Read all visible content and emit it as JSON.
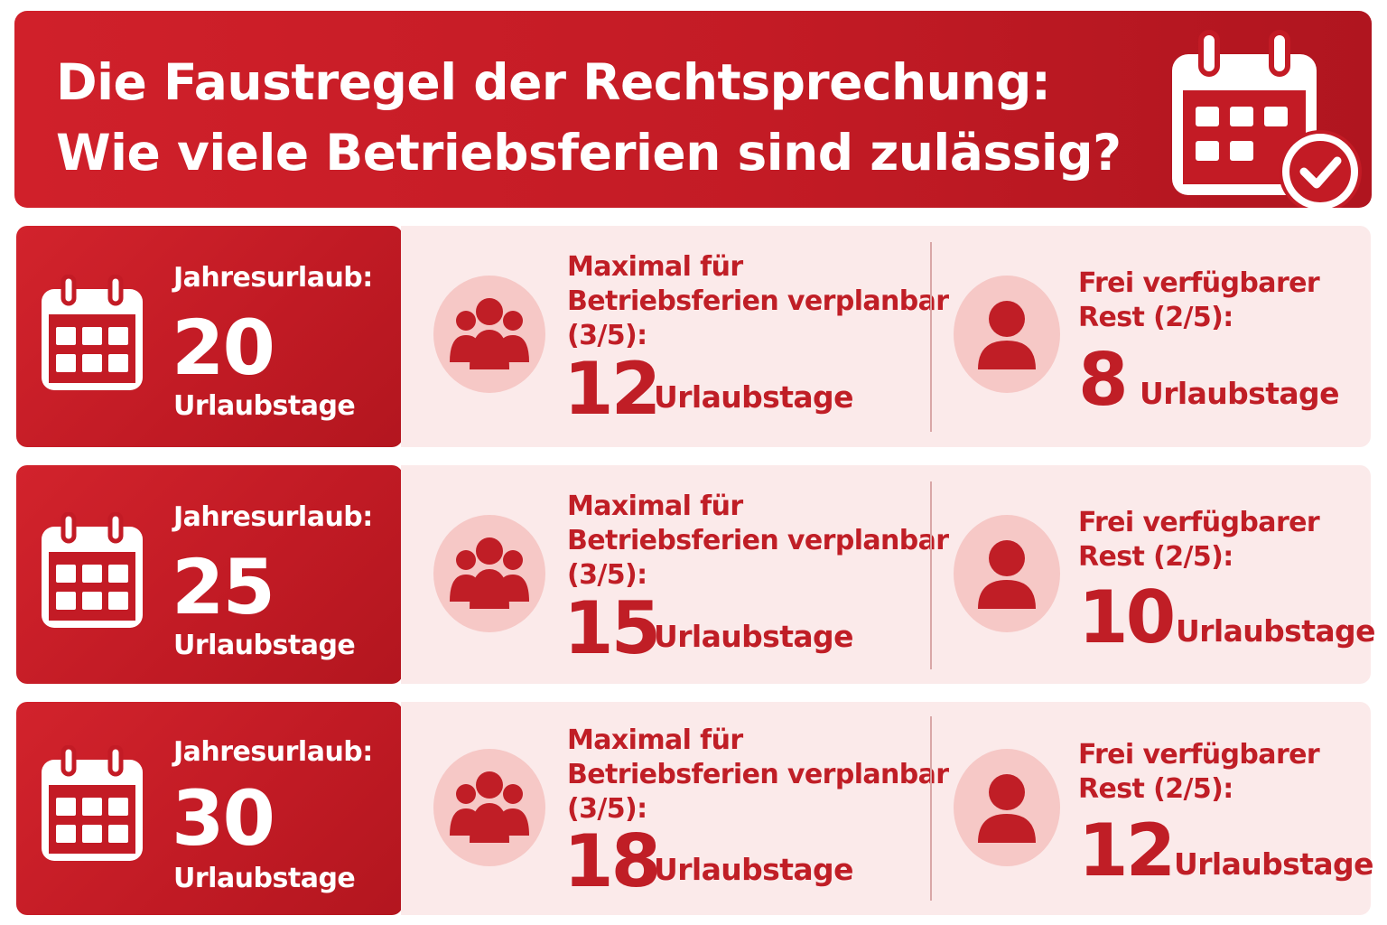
{
  "header": {
    "title_line1": "Die Faustregel der Rechtsprechung:",
    "title_line2": "Wie viele Betriebsferien sind zulässig?",
    "icon": "calendar-check-icon"
  },
  "colors": {
    "primary_red": "#c31b25",
    "light_pink": "#fbeaea",
    "circle_pink": "#f6c8c6",
    "white": "#ffffff"
  },
  "rows": [
    {
      "jahr_label": "Jahresurlaub:",
      "jahr_value": "20",
      "jahr_unit": "Urlaubstage",
      "mid_line1": "Maximal für",
      "mid_line2": "Betriebsferien verplanbar",
      "mid_line3": "(3/5):",
      "mid_value": "12",
      "mid_unit": "Urlaubstage",
      "rest_line1": "Frei verfügbarer",
      "rest_line2": "Rest (2/5):",
      "rest_value": "8",
      "rest_unit": "Urlaubstage"
    },
    {
      "jahr_label": "Jahresurlaub:",
      "jahr_value": "25",
      "jahr_unit": "Urlaubstage",
      "mid_line1": "Maximal für",
      "mid_line2": "Betriebsferien verplanbar",
      "mid_line3": "(3/5):",
      "mid_value": "15",
      "mid_unit": "Urlaubstage",
      "rest_line1": "Frei verfügbarer",
      "rest_line2": "Rest (2/5):",
      "rest_value": "10",
      "rest_unit": "Urlaubstage"
    },
    {
      "jahr_label": "Jahresurlaub:",
      "jahr_value": "30",
      "jahr_unit": "Urlaubstage",
      "mid_line1": "Maximal für",
      "mid_line2": "Betriebsferien verplanbar",
      "mid_line3": "(3/5):",
      "mid_value": "18",
      "mid_unit": "Urlaubstage",
      "rest_line1": "Frei verfügbarer",
      "rest_line2": "Rest (2/5):",
      "rest_value": "12",
      "rest_unit": "Urlaubstage"
    }
  ]
}
